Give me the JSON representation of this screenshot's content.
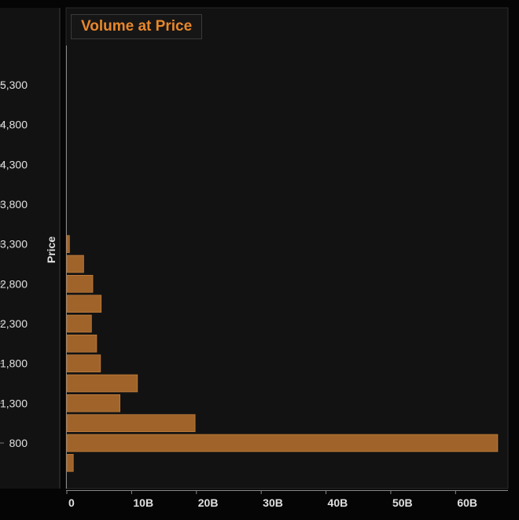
{
  "chart_data": {
    "type": "bar",
    "orientation": "horizontal",
    "title": "Volume at Price",
    "ylabel": "Price",
    "xlabel": "",
    "categories": [
      550,
      800,
      1050,
      1300,
      1550,
      1800,
      2050,
      2300,
      2550,
      2800,
      3050,
      3300,
      3550,
      3800,
      4050,
      4300,
      4550,
      4800,
      5050,
      5300
    ],
    "values": [
      1.0,
      66.5,
      19.8,
      8.2,
      10.9,
      5.2,
      4.6,
      3.8,
      5.3,
      4.0,
      2.6,
      0.4,
      0,
      0,
      0,
      0,
      0,
      0,
      0,
      0
    ],
    "y_tick_labels": [
      {
        "price": 800,
        "label": "800"
      },
      {
        "price": 1300,
        "label": "1,300"
      },
      {
        "price": 1800,
        "label": "1,800"
      },
      {
        "price": 2300,
        "label": "2,300"
      },
      {
        "price": 2800,
        "label": "2,800"
      },
      {
        "price": 3300,
        "label": "3,300"
      },
      {
        "price": 3800,
        "label": "3,800"
      },
      {
        "price": 4300,
        "label": "4,300"
      },
      {
        "price": 4800,
        "label": "4,800"
      },
      {
        "price": 5300,
        "label": "5,300"
      }
    ],
    "x_ticks": [
      {
        "value": 0,
        "label": "0"
      },
      {
        "value": 10,
        "label": "10B"
      },
      {
        "value": 20,
        "label": "20B"
      },
      {
        "value": 30,
        "label": "30B"
      },
      {
        "value": 40,
        "label": "40B"
      },
      {
        "value": 50,
        "label": "50B"
      },
      {
        "value": 60,
        "label": "60B"
      }
    ],
    "xlim": [
      0,
      67
    ],
    "ylim": [
      425,
      5800
    ],
    "grid": false,
    "colors": {
      "bar": "#a0642a",
      "bar_border": "#c07c3c",
      "title": "#e8872a",
      "plot_bg": "#121212",
      "panel_bg": "#050505",
      "text": "#e0e0e0"
    }
  }
}
